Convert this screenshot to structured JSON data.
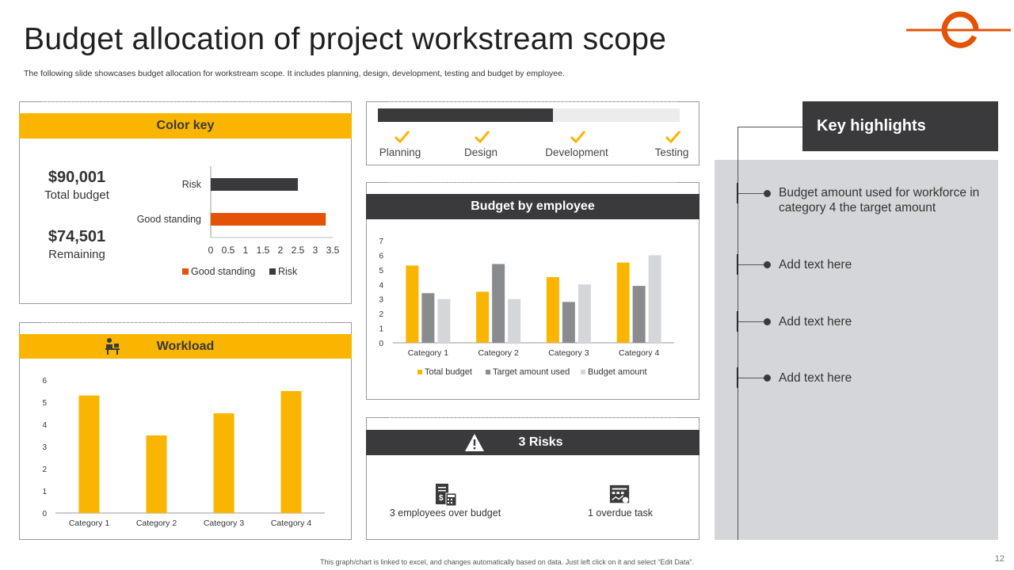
{
  "header": {
    "title": "Budget allocation of project workstream scope",
    "subtitle": "The following slide showcases budget allocation for workstream scope. It includes planning, design, development, testing and budget by employee."
  },
  "color_key": {
    "heading": "Color key",
    "total_value": "$90,001",
    "total_label": "Total budget",
    "remaining_value": "$74,501",
    "remaining_label": "Remaining"
  },
  "workload": {
    "heading": "Workload"
  },
  "progress": {
    "fraction_complete": 0.58,
    "stages": [
      "Planning",
      "Design",
      "Development",
      "Testing"
    ]
  },
  "employee": {
    "heading": "Budget by employee"
  },
  "risks": {
    "heading": "3 Risks",
    "items": [
      "3 employees over budget",
      "1 overdue task"
    ]
  },
  "highlights": {
    "heading": "Key highlights",
    "items": [
      "Budget amount used for workforce in category 4 the target amount",
      "Add text here",
      "Add text here",
      "Add text here"
    ]
  },
  "footer": {
    "note": "This graph/chart is linked to excel, and changes automatically based on data. Just left click on it and select “Edit Data”.",
    "page": "12"
  },
  "colors": {
    "yellow": "#f9b500",
    "dark": "#3a3a3c",
    "orange": "#e35205",
    "mid_gray": "#8a8b8e",
    "light_gray": "#d5d6d9"
  },
  "chart_data": [
    {
      "type": "bar",
      "orientation": "horizontal",
      "categories": [
        "Good standing",
        "Risk"
      ],
      "series": [
        {
          "name": "Good standing",
          "color": "#e35205",
          "values": [
            3.3,
            null
          ]
        },
        {
          "name": "Risk",
          "color": "#3a3a3c",
          "values": [
            null,
            2.5
          ]
        }
      ],
      "xlim": [
        0,
        3.5
      ],
      "ticks": [
        "0",
        "0.5",
        "1",
        "1.5",
        "2",
        "2.5",
        "3",
        "3.5"
      ],
      "legend": "bottom"
    },
    {
      "type": "bar",
      "categories": [
        "Category 1",
        "Category 2",
        "Category 3",
        "Category 4"
      ],
      "values": [
        5.3,
        3.5,
        4.5,
        5.5
      ],
      "ylim": [
        0,
        6
      ],
      "ticks": [
        "0",
        "1",
        "2",
        "3",
        "4",
        "5",
        "6"
      ],
      "color": "#f9b500"
    },
    {
      "type": "bar",
      "categories": [
        "Category 1",
        "Category 2",
        "Category 3",
        "Category 4"
      ],
      "series": [
        {
          "name": "Total budget",
          "color": "#f9b500",
          "values": [
            5.3,
            3.5,
            4.5,
            5.5
          ]
        },
        {
          "name": "Target amount used",
          "color": "#8a8b8e",
          "values": [
            3.4,
            5.4,
            2.8,
            3.9
          ]
        },
        {
          "name": "Budget amount",
          "color": "#d5d6d9",
          "values": [
            3.0,
            3.0,
            4.0,
            6.0
          ]
        }
      ],
      "ylim": [
        0,
        7
      ],
      "ticks": [
        "0",
        "1",
        "2",
        "3",
        "4",
        "5",
        "6",
        "7"
      ],
      "legend": "bottom"
    }
  ]
}
